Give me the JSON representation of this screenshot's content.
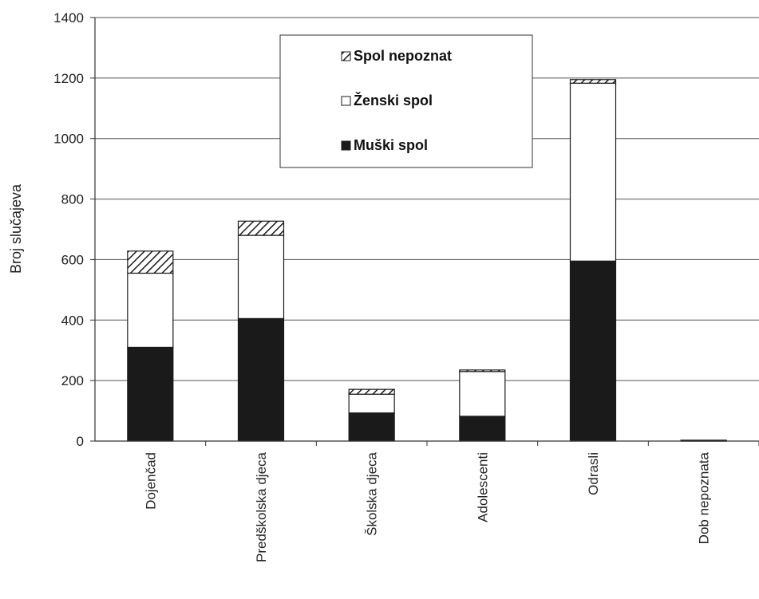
{
  "chart_data": {
    "type": "bar",
    "stacked": true,
    "categories": [
      "Dojenčad",
      "Predškolska djeca",
      "Školska djeca",
      "Adolescenti",
      "Odrasli",
      "Dob nepoznata"
    ],
    "series": [
      {
        "name": "Muški spol",
        "values": [
          310,
          405,
          93,
          82,
          595,
          1
        ],
        "fill": "solid",
        "color": "#1a1a1a"
      },
      {
        "name": "Ženski spol",
        "values": [
          245,
          275,
          62,
          148,
          588,
          2
        ],
        "fill": "white",
        "color": "#ffffff"
      },
      {
        "name": "Spol nepoznat",
        "values": [
          73,
          47,
          16,
          5,
          12,
          0
        ],
        "fill": "hatched",
        "color": "#1a1a1a"
      }
    ],
    "legend_order": [
      "Spol nepoznat",
      "Ženski spol",
      "Muški spol"
    ],
    "title": "",
    "xlabel": "",
    "ylabel": "Broj slučajeva",
    "ylim": [
      0,
      1400
    ],
    "yticks": [
      0,
      200,
      400,
      600,
      800,
      1000,
      1200,
      1400
    ],
    "grid": true,
    "legend_position": "top-center"
  }
}
